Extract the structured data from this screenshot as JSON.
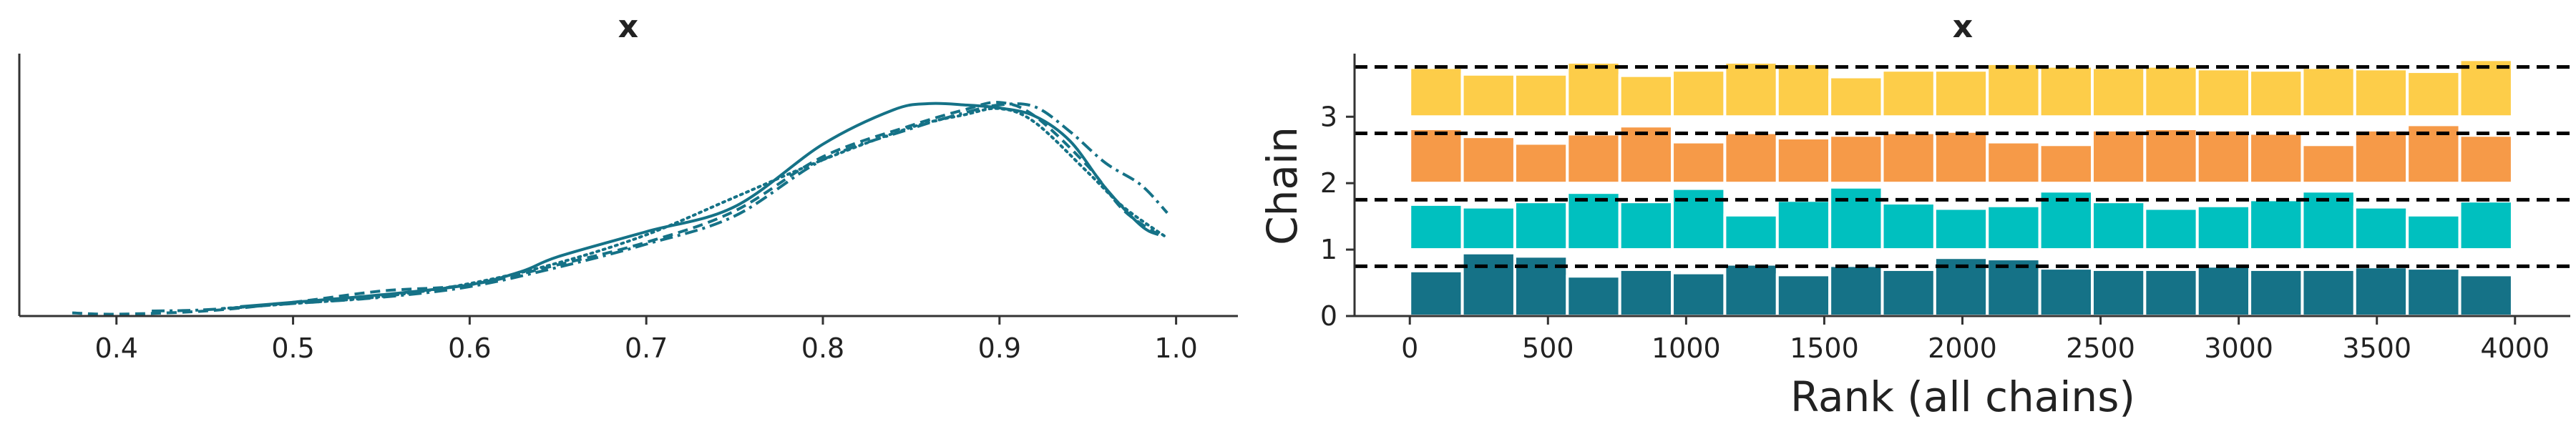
{
  "chart_data": [
    {
      "type": "line",
      "title": "x",
      "xlabel": "",
      "ylabel": "",
      "xlim": [
        0.345,
        1.035
      ],
      "xticks": [
        0.4,
        0.5,
        0.6,
        0.7,
        0.8,
        0.9,
        1.0
      ],
      "xtick_labels": [
        "0.4",
        "0.5",
        "0.6",
        "0.7",
        "0.8",
        "0.9",
        "1.0"
      ],
      "ylim": [
        0,
        4.2
      ],
      "yticks_visible": false,
      "line_color": "#157287",
      "series": [
        {
          "style": "solid",
          "x": [
            0.47,
            0.5,
            0.55,
            0.6,
            0.63,
            0.65,
            0.7,
            0.75,
            0.8,
            0.84,
            0.86,
            0.88,
            0.9,
            0.92,
            0.94,
            0.96,
            0.98,
            0.99
          ],
          "y": [
            0.15,
            0.22,
            0.34,
            0.5,
            0.72,
            0.95,
            1.35,
            1.75,
            2.75,
            3.3,
            3.4,
            3.38,
            3.33,
            3.2,
            2.8,
            2.05,
            1.45,
            1.3
          ]
        },
        {
          "style": "dashed",
          "x": [
            0.375,
            0.4,
            0.45,
            0.5,
            0.55,
            0.6,
            0.65,
            0.7,
            0.75,
            0.8,
            0.85,
            0.88,
            0.9,
            0.92,
            0.95,
            0.97,
            0.99
          ],
          "y": [
            0.05,
            0.03,
            0.08,
            0.22,
            0.4,
            0.5,
            0.82,
            1.18,
            1.68,
            2.55,
            3.05,
            3.3,
            3.42,
            3.2,
            2.4,
            1.7,
            1.3
          ]
        },
        {
          "style": "dashdot",
          "x": [
            0.42,
            0.45,
            0.5,
            0.55,
            0.6,
            0.65,
            0.7,
            0.75,
            0.8,
            0.85,
            0.88,
            0.9,
            0.92,
            0.94,
            0.96,
            0.98,
            0.995
          ],
          "y": [
            0.08,
            0.1,
            0.2,
            0.3,
            0.47,
            0.78,
            1.15,
            1.6,
            2.5,
            3.0,
            3.25,
            3.38,
            3.35,
            2.95,
            2.45,
            2.1,
            1.65
          ]
        },
        {
          "style": "dotted",
          "x": [
            0.46,
            0.5,
            0.55,
            0.6,
            0.65,
            0.7,
            0.75,
            0.8,
            0.85,
            0.88,
            0.9,
            0.92,
            0.95,
            0.97,
            0.995
          ],
          "y": [
            0.12,
            0.2,
            0.31,
            0.52,
            0.85,
            1.3,
            1.9,
            2.5,
            3.02,
            3.22,
            3.32,
            3.1,
            2.3,
            1.75,
            1.25
          ]
        }
      ]
    },
    {
      "type": "bar",
      "title": "x",
      "xlabel": "Rank (all chains)",
      "ylabel": "Chain",
      "xlim": [
        -200,
        4200
      ],
      "ylim": [
        0,
        3.95
      ],
      "xticks": [
        0,
        500,
        1000,
        1500,
        2000,
        2500,
        3000,
        3500,
        4000
      ],
      "xtick_labels": [
        "0",
        "500",
        "1000",
        "1500",
        "2000",
        "2500",
        "3000",
        "3500",
        "4000"
      ],
      "yticks": [
        0,
        1,
        2,
        3
      ],
      "ytick_labels": [
        "0",
        "1",
        "2",
        "3"
      ],
      "bin_edges": [
        0,
        190,
        380,
        570,
        760,
        950,
        1140,
        1330,
        1520,
        1710,
        1900,
        2090,
        2280,
        2470,
        2660,
        2850,
        3040,
        3230,
        3420,
        3610,
        3800,
        3990
      ],
      "reference_level": 0.75,
      "series": [
        {
          "name": "0",
          "color": "#157287",
          "offset": 0,
          "values": [
            0.68,
            0.95,
            0.9,
            0.6,
            0.7,
            0.65,
            0.78,
            0.62,
            0.76,
            0.7,
            0.88,
            0.86,
            0.72,
            0.7,
            0.7,
            0.75,
            0.7,
            0.7,
            0.74,
            0.72,
            0.62
          ]
        },
        {
          "name": "1",
          "color": "#00c0bf",
          "offset": 1,
          "values": [
            0.68,
            0.64,
            0.72,
            0.86,
            0.72,
            0.92,
            0.52,
            0.74,
            0.94,
            0.7,
            0.62,
            0.66,
            0.88,
            0.72,
            0.62,
            0.66,
            0.75,
            0.88,
            0.64,
            0.52,
            0.73
          ]
        },
        {
          "name": "2",
          "color": "#f69a48",
          "offset": 2,
          "values": [
            0.82,
            0.7,
            0.6,
            0.74,
            0.86,
            0.62,
            0.76,
            0.68,
            0.72,
            0.76,
            0.78,
            0.62,
            0.58,
            0.8,
            0.82,
            0.8,
            0.75,
            0.58,
            0.8,
            0.88,
            0.72
          ]
        },
        {
          "name": "3",
          "color": "#fdcd49",
          "offset": 3,
          "values": [
            0.74,
            0.64,
            0.64,
            0.82,
            0.62,
            0.7,
            0.82,
            0.8,
            0.6,
            0.7,
            0.7,
            0.8,
            0.76,
            0.74,
            0.76,
            0.72,
            0.7,
            0.74,
            0.72,
            0.68,
            0.86
          ]
        }
      ]
    }
  ]
}
